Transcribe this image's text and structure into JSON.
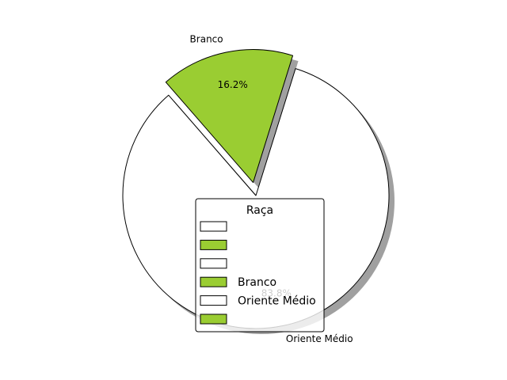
{
  "chart_data": {
    "type": "pie",
    "slices": [
      {
        "label": "Oriente Médio",
        "value": 83.8,
        "pct_label": "83.8%",
        "color": "#ffffff"
      },
      {
        "label": "Branco",
        "value": 16.2,
        "pct_label": "16.2%",
        "color": "#9acd32"
      }
    ],
    "start_angle_deg": 131,
    "explode": [
      0.0,
      0.1
    ],
    "shadow": true,
    "legend": {
      "title": "Raça",
      "placement": "lower-right",
      "entries": [
        {
          "label": "",
          "color": "#ffffff"
        },
        {
          "label": "",
          "color": "#9acd32"
        },
        {
          "label": "",
          "color": "#ffffff"
        },
        {
          "label": "Branco",
          "color": "#9acd32"
        },
        {
          "label": "Oriente Médio",
          "color": "#ffffff"
        },
        {
          "label": "",
          "color": "#9acd32"
        }
      ]
    },
    "colors": {
      "edge": "#000000",
      "shadow": "#808080"
    }
  }
}
